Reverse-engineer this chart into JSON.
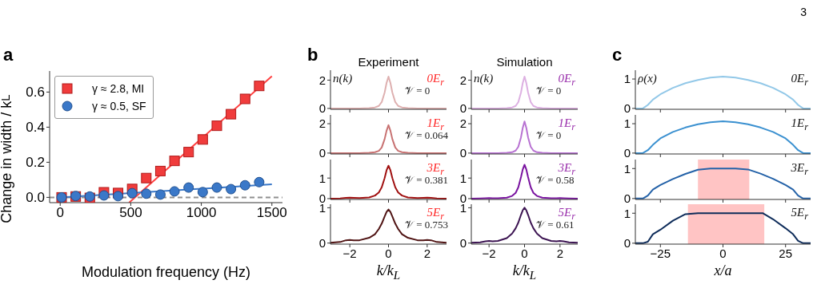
{
  "chart_data": [
    {
      "type": "scatter",
      "title": "a",
      "xlabel": "Modulation frequency (Hz)",
      "ylabel": "Change in width / k$_{L}$",
      "annotations": [
        "3"
      ],
      "xlim": [
        -75,
        1575
      ],
      "xticks": [
        0,
        500,
        1000,
        1500
      ],
      "ylim": [
        -0.03,
        0.72
      ],
      "yticks": [
        {
          "value": 0,
          "label": "0.0"
        },
        {
          "value": 0.2,
          "label": "0.2"
        },
        {
          "value": 0.4,
          "label": "0.4"
        },
        {
          "value": 0.6,
          "label": "0.6"
        }
      ],
      "legend": "top left",
      "grid": false,
      "ref_lines": [
        {
          "axis": "y",
          "value": 0,
          "color": "#909090",
          "line_style": "dashed"
        }
      ],
      "series": [
        {
          "name": "γ ≈ 2.8, MI",
          "marker": "square",
          "color": "#f03c3c",
          "x": [
            10,
            110,
            210,
            310,
            410,
            510,
            610,
            710,
            810,
            910,
            1010,
            1110,
            1210,
            1310,
            1410
          ],
          "values": [
            0,
            0.005,
            -0.003,
            0.029,
            0.025,
            0.048,
            0.11,
            0.15,
            0.208,
            0.258,
            0.33,
            0.408,
            0.474,
            0.561,
            0.635
          ]
        },
        {
          "name": "γ ≈ 0.5, SF",
          "marker": "circle",
          "color": "#3a78c8",
          "x": [
            10,
            110,
            210,
            310,
            410,
            510,
            610,
            710,
            810,
            910,
            1010,
            1110,
            1210,
            1310,
            1410
          ],
          "values": [
            0,
            0.008,
            0.005,
            0.011,
            0.007,
            0.024,
            0.021,
            0.016,
            0.034,
            0.056,
            0.03,
            0.056,
            0.047,
            0.069,
            0.087
          ]
        },
        {
          "type": "line",
          "color": "#ff4040",
          "x": [
            488,
            1500
          ],
          "values": [
            -0.03,
            0.69
          ]
        },
        {
          "type": "line",
          "color": "#3a78c8",
          "x": [
            0,
            1500
          ],
          "values": [
            0,
            0.074
          ]
        }
      ]
    },
    {
      "type": "line",
      "title": "b",
      "subtitle": "Experiment",
      "annotations": [
        "0E$_{r}$",
        "𝒱 = 0",
        "n(k)"
      ],
      "xlim": [
        -3,
        3
      ],
      "xticks": [
        -2,
        0,
        2
      ],
      "ylim": [
        -0.06,
        2.7
      ],
      "yticks": [
        0,
        2
      ],
      "tick_labels": "y",
      "x": [
        -3,
        -2.5,
        -2.2,
        -2,
        -1.8,
        -1.5,
        -1,
        -0.7,
        -0.5,
        -0.35,
        -0.2,
        -0.1,
        0,
        0.1,
        0.2,
        0.35,
        0.5,
        0.7,
        1,
        1.5,
        1.8,
        2,
        2.2,
        2.5,
        3
      ],
      "series": [
        {
          "color": "#deb0b0",
          "values": [
            0,
            0,
            0,
            0,
            0,
            0,
            0.02,
            0.07,
            0.18,
            0.45,
            1.12,
            1.8,
            2.25,
            1.8,
            1.12,
            0.45,
            0.18,
            0.07,
            0.02,
            0,
            0,
            0,
            0,
            0,
            0
          ]
        }
      ]
    },
    {
      "type": "line",
      "annotations": [
        "1E$_{r}$",
        "𝒱 = 0.064"
      ],
      "xlim": [
        -3,
        3
      ],
      "xticks": [
        -2,
        0,
        2
      ],
      "ylim": [
        -0.06,
        2.6
      ],
      "yticks": [
        0,
        2
      ],
      "tick_labels": "y",
      "x": [
        -3,
        -2.5,
        -2.2,
        -2,
        -1.8,
        -1.5,
        -1,
        -0.7,
        -0.5,
        -0.35,
        -0.2,
        -0.1,
        0,
        0.1,
        0.2,
        0.35,
        0.5,
        0.7,
        1,
        1.5,
        1.8,
        2,
        2.2,
        2.5,
        3
      ],
      "series": [
        {
          "color": "#c87272",
          "values": [
            0,
            0,
            0,
            0,
            0,
            0,
            0.02,
            0.06,
            0.15,
            0.38,
            0.95,
            1.52,
            1.9,
            1.52,
            0.95,
            0.38,
            0.15,
            0.06,
            0.02,
            0,
            0,
            0,
            0,
            0,
            0
          ]
        }
      ]
    },
    {
      "type": "line",
      "annotations": [
        "3E$_{r}$",
        "𝒱 = 0.381"
      ],
      "xlim": [
        -3,
        3
      ],
      "xticks": [
        -2,
        0,
        2
      ],
      "ylim": [
        -0.04,
        1.9
      ],
      "yticks": [
        0,
        1
      ],
      "tick_labels": "y",
      "x": [
        -3,
        -2.5,
        -2.2,
        -2,
        -1.8,
        -1.5,
        -1,
        -0.7,
        -0.5,
        -0.35,
        -0.2,
        -0.1,
        0,
        0.1,
        0.2,
        0.35,
        0.5,
        0.7,
        1,
        1.5,
        1.8,
        2,
        2.2,
        2.5,
        3
      ],
      "series": [
        {
          "color": "#a01010",
          "values": [
            0,
            0.01,
            0.04,
            0.05,
            0.04,
            0.03,
            0.06,
            0.15,
            0.3,
            0.55,
            1.0,
            1.38,
            1.6,
            1.38,
            1.0,
            0.55,
            0.3,
            0.15,
            0.06,
            0.03,
            0.04,
            0.05,
            0.04,
            0.01,
            0
          ]
        }
      ]
    },
    {
      "type": "line",
      "xlabel": "k/k$_{L}$",
      "annotations": [
        "5E$_{r}$",
        "𝒱 = 0.753"
      ],
      "xlim": [
        -3,
        3
      ],
      "xticks": [
        -2,
        0,
        2
      ],
      "ylim": [
        -0.03,
        1.1
      ],
      "yticks": [
        0,
        1
      ],
      "x": [
        -3,
        -2.5,
        -2.2,
        -2,
        -1.8,
        -1.5,
        -1,
        -0.7,
        -0.5,
        -0.35,
        -0.2,
        -0.1,
        0,
        0.1,
        0.2,
        0.35,
        0.5,
        0.7,
        1,
        1.5,
        1.8,
        2,
        2.2,
        2.5,
        3
      ],
      "series": [
        {
          "color": "#501414",
          "values": [
            0.01,
            0.03,
            0.08,
            0.09,
            0.08,
            0.08,
            0.15,
            0.25,
            0.4,
            0.55,
            0.75,
            0.88,
            0.95,
            0.88,
            0.75,
            0.55,
            0.4,
            0.25,
            0.15,
            0.08,
            0.08,
            0.09,
            0.08,
            0.03,
            0.01
          ]
        }
      ]
    },
    {
      "type": "line",
      "subtitle": "Simulation",
      "annotations": [
        "0E$_{r}$",
        "𝒱 = 0",
        "n(k)"
      ],
      "xlim": [
        -3,
        3
      ],
      "xticks": [
        -2,
        0,
        2
      ],
      "ylim": [
        -0.06,
        2.7
      ],
      "yticks": [
        0,
        2
      ],
      "tick_labels": "y",
      "x": [
        -3,
        -2.5,
        -2.2,
        -2,
        -1.8,
        -1.5,
        -1,
        -0.7,
        -0.5,
        -0.35,
        -0.2,
        -0.1,
        0,
        0.1,
        0.2,
        0.35,
        0.5,
        0.7,
        1,
        1.5,
        1.8,
        2,
        2.2,
        2.5,
        3
      ],
      "series": [
        {
          "color": "#ddb0e2",
          "values": [
            0,
            0,
            0,
            0,
            0,
            0,
            0.02,
            0.07,
            0.18,
            0.45,
            1.12,
            1.8,
            2.25,
            1.8,
            1.12,
            0.45,
            0.18,
            0.07,
            0.02,
            0,
            0,
            0,
            0,
            0,
            0
          ]
        }
      ]
    },
    {
      "type": "line",
      "annotations": [
        "1E$_{r}$",
        "𝒱 = 0"
      ],
      "xlim": [
        -3,
        3
      ],
      "xticks": [
        -2,
        0,
        2
      ],
      "ylim": [
        -0.06,
        2.6
      ],
      "yticks": [
        0,
        2
      ],
      "tick_labels": "y",
      "x": [
        -3,
        -2.5,
        -2.2,
        -2,
        -1.8,
        -1.5,
        -1,
        -0.7,
        -0.5,
        -0.35,
        -0.2,
        -0.1,
        0,
        0.1,
        0.2,
        0.35,
        0.5,
        0.7,
        1,
        1.5,
        1.8,
        2,
        2.2,
        2.5,
        3
      ],
      "series": [
        {
          "color": "#b872d2",
          "values": [
            0,
            0,
            0,
            0,
            0,
            0,
            0.02,
            0.06,
            0.17,
            0.43,
            1.07,
            1.72,
            2.15,
            1.72,
            1.07,
            0.43,
            0.17,
            0.06,
            0.02,
            0,
            0,
            0,
            0,
            0,
            0
          ]
        }
      ]
    },
    {
      "type": "line",
      "annotations": [
        "3E$_{r}$",
        "𝒱 = 0.58"
      ],
      "xlim": [
        -3,
        3
      ],
      "xticks": [
        -2,
        0,
        2
      ],
      "ylim": [
        -0.04,
        1.9
      ],
      "yticks": [
        0,
        1
      ],
      "tick_labels": "y",
      "x": [
        -3,
        -2.5,
        -2.2,
        -2,
        -1.8,
        -1.5,
        -1,
        -0.7,
        -0.5,
        -0.35,
        -0.2,
        -0.1,
        0,
        0.1,
        0.2,
        0.35,
        0.5,
        0.7,
        1,
        1.5,
        1.8,
        2,
        2.2,
        2.5,
        3
      ],
      "series": [
        {
          "color": "#7a14a0",
          "values": [
            0,
            0.01,
            0.02,
            0.03,
            0.02,
            0.02,
            0.05,
            0.13,
            0.28,
            0.55,
            1.05,
            1.42,
            1.65,
            1.42,
            1.05,
            0.55,
            0.28,
            0.13,
            0.05,
            0.02,
            0.02,
            0.03,
            0.02,
            0.01,
            0
          ]
        }
      ]
    },
    {
      "type": "line",
      "xlabel": "k/k$_{L}$",
      "annotations": [
        "5E$_{r}$",
        "𝒱 = 0.61"
      ],
      "xlim": [
        -3,
        3
      ],
      "xticks": [
        -2,
        0,
        2
      ],
      "ylim": [
        -0.03,
        1.1
      ],
      "yticks": [
        0,
        1
      ],
      "x": [
        -3,
        -2.5,
        -2.2,
        -2,
        -1.8,
        -1.5,
        -1,
        -0.7,
        -0.5,
        -0.35,
        -0.2,
        -0.1,
        0,
        0.1,
        0.2,
        0.35,
        0.5,
        0.7,
        1,
        1.5,
        1.8,
        2,
        2.2,
        2.5,
        3
      ],
      "series": [
        {
          "color": "#3c1452",
          "values": [
            0.01,
            0.02,
            0.05,
            0.06,
            0.05,
            0.06,
            0.14,
            0.27,
            0.42,
            0.58,
            0.8,
            0.93,
            1.0,
            0.93,
            0.8,
            0.58,
            0.42,
            0.27,
            0.14,
            0.06,
            0.05,
            0.06,
            0.05,
            0.02,
            0.01
          ]
        }
      ]
    },
    {
      "type": "line",
      "title": "c",
      "annotations": [
        "0E$_{r}$",
        "ρ(x)"
      ],
      "xlim": [
        -35,
        35
      ],
      "xticks": [
        -25,
        0,
        25
      ],
      "ylim": [
        -0.03,
        1.3
      ],
      "yticks": [
        0,
        1
      ],
      "tick_labels": "y",
      "x": [
        -35,
        -32,
        -30,
        -28,
        -25,
        -20,
        -15,
        -10,
        -5,
        0,
        5,
        10,
        15,
        20,
        25,
        28,
        30,
        32,
        35
      ],
      "series": [
        {
          "color": "#92c8e8",
          "values": [
            0,
            0,
            0.12,
            0.3,
            0.48,
            0.7,
            0.86,
            0.97,
            1.05,
            1.08,
            1.05,
            0.97,
            0.86,
            0.7,
            0.48,
            0.3,
            0.12,
            0,
            0
          ]
        }
      ]
    },
    {
      "type": "line",
      "annotations": [
        "1E$_{r}$"
      ],
      "xlim": [
        -35,
        35
      ],
      "xticks": [
        -25,
        0,
        25
      ],
      "ylim": [
        -0.03,
        1.3
      ],
      "yticks": [
        0,
        1
      ],
      "tick_labels": "y",
      "x": [
        -35,
        -32,
        -30,
        -28,
        -25,
        -20,
        -15,
        -10,
        -5,
        0,
        5,
        10,
        15,
        20,
        25,
        28,
        30,
        32,
        35
      ],
      "series": [
        {
          "color": "#3a90d0",
          "values": [
            0,
            0,
            0.1,
            0.28,
            0.5,
            0.72,
            0.87,
            0.98,
            1.05,
            1.08,
            1.05,
            0.98,
            0.87,
            0.72,
            0.5,
            0.28,
            0.1,
            0,
            0
          ]
        }
      ]
    },
    {
      "type": "line",
      "annotations": [
        "3E$_{r}$"
      ],
      "xlim": [
        -35,
        35
      ],
      "xticks": [
        -25,
        0,
        25
      ],
      "ylim": [
        -0.03,
        1.3
      ],
      "yticks": [
        0,
        1
      ],
      "tick_labels": "y",
      "bands": [
        {
          "axis": "x",
          "from": -10,
          "to": 10.5,
          "color": "#ffc4c4"
        }
      ],
      "x": [
        -35,
        -32,
        -30,
        -28,
        -25,
        -20,
        -15,
        -10,
        -5,
        0,
        5,
        10,
        15,
        20,
        25,
        28,
        30,
        32,
        35
      ],
      "series": [
        {
          "color": "#2462a8",
          "values": [
            0,
            0,
            0.1,
            0.3,
            0.45,
            0.65,
            0.82,
            0.96,
            1.0,
            1.0,
            1.0,
            0.97,
            0.83,
            0.66,
            0.45,
            0.3,
            0.1,
            0,
            0
          ]
        }
      ]
    },
    {
      "type": "line",
      "xlabel": "x/a",
      "annotations": [
        "5E$_{r}$"
      ],
      "xlim": [
        -35,
        35
      ],
      "xticks": [
        -25,
        0,
        25
      ],
      "ylim": [
        -0.03,
        1.3
      ],
      "yticks": [
        0,
        1
      ],
      "bands": [
        {
          "axis": "x",
          "from": -14,
          "to": 16.5,
          "color": "#ffc4c4"
        }
      ],
      "x": [
        -35,
        -32,
        -30,
        -28,
        -25,
        -20,
        -15,
        -10,
        -5,
        0,
        5,
        10,
        16,
        20,
        25,
        28,
        30,
        32,
        35
      ],
      "series": [
        {
          "color": "#0e2c5a",
          "values": [
            0,
            0,
            0.05,
            0.3,
            0.45,
            0.75,
            0.97,
            1.0,
            1.0,
            1.0,
            1.0,
            1.0,
            1.0,
            0.8,
            0.5,
            0.3,
            0.08,
            0,
            0
          ]
        }
      ]
    }
  ]
}
